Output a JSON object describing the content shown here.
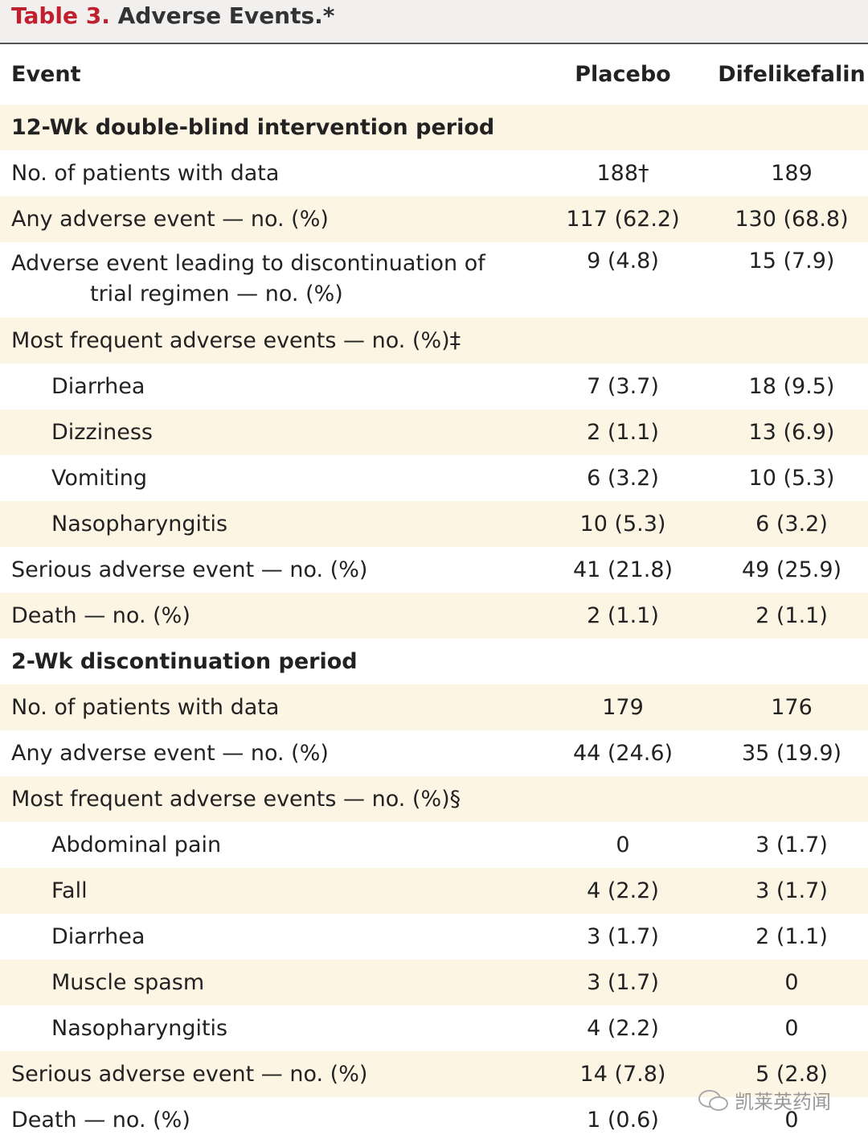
{
  "header": {
    "label": "Table 3.",
    "title": "Adverse Events.*"
  },
  "columns": [
    "Event",
    "Placebo",
    "Difelikefalin"
  ],
  "sections": [
    {
      "title": "12-Wk double-blind intervention period",
      "rows": [
        {
          "event": "No. of patients with data",
          "placebo": "188†",
          "difelikefalin": "189"
        },
        {
          "event": "Any adverse event — no. (%)",
          "placebo": "117 (62.2)",
          "difelikefalin": "130 (68.8)"
        },
        {
          "event": "Adverse event leading to discontinuation of trial regimen — no. (%)",
          "placebo": "9 (4.8)",
          "difelikefalin": "15 (7.9)"
        },
        {
          "event": "Most frequent adverse events — no. (%)‡",
          "items": [
            {
              "event": "Diarrhea",
              "placebo": "7 (3.7)",
              "difelikefalin": "18 (9.5)"
            },
            {
              "event": "Dizziness",
              "placebo": "2 (1.1)",
              "difelikefalin": "13 (6.9)"
            },
            {
              "event": "Vomiting",
              "placebo": "6 (3.2)",
              "difelikefalin": "10 (5.3)"
            },
            {
              "event": "Nasopharyngitis",
              "placebo": "10 (5.3)",
              "difelikefalin": "6 (3.2)"
            }
          ]
        },
        {
          "event": "Serious adverse event — no. (%)",
          "placebo": "41 (21.8)",
          "difelikefalin": "49 (25.9)"
        },
        {
          "event": "Death — no. (%)",
          "placebo": "2 (1.1)",
          "difelikefalin": "2 (1.1)"
        }
      ]
    },
    {
      "title": "2-Wk discontinuation period",
      "rows": [
        {
          "event": "No. of patients with data",
          "placebo": "179",
          "difelikefalin": "176"
        },
        {
          "event": "Any adverse event — no. (%)",
          "placebo": "44 (24.6)",
          "difelikefalin": "35 (19.9)"
        },
        {
          "event": "Most frequent adverse events — no. (%)§",
          "items": [
            {
              "event": "Abdominal pain",
              "placebo": "0",
              "difelikefalin": "3 (1.7)"
            },
            {
              "event": "Fall",
              "placebo": "4 (2.2)",
              "difelikefalin": "3 (1.7)"
            },
            {
              "event": "Diarrhea",
              "placebo": "3 (1.7)",
              "difelikefalin": "2 (1.1)"
            },
            {
              "event": "Muscle spasm",
              "placebo": "3 (1.7)",
              "difelikefalin": "0"
            },
            {
              "event": "Nasopharyngitis",
              "placebo": "4 (2.2)",
              "difelikefalin": "0"
            }
          ]
        },
        {
          "event": "Serious adverse event — no. (%)",
          "placebo": "14 (7.8)",
          "difelikefalin": "5 (2.8)"
        },
        {
          "event": "Death — no. (%)",
          "placebo": "1 (0.6)",
          "difelikefalin": "0"
        }
      ]
    }
  ],
  "watermark": "凯莱英药闻"
}
